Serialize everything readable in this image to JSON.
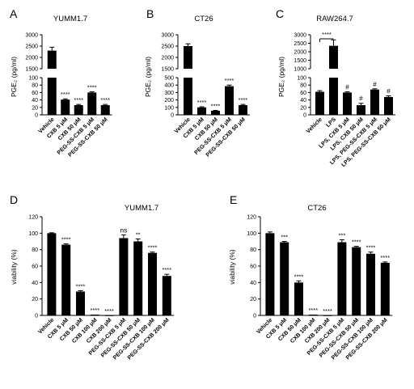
{
  "chart_data": [
    {
      "panel": "A",
      "type": "bar",
      "title": "YUMM1.7",
      "ylabel": "PGE₂ (pg/ml)",
      "categories": [
        "Vehicle",
        "CXB 5 μM",
        "CXB 50 μM",
        "PEG-SS-CXB 5 μM",
        "PEG-SS-CXB 50 μM"
      ],
      "values": [
        2300,
        41,
        26,
        60,
        26
      ],
      "errors": [
        150,
        2,
        2,
        2,
        2
      ],
      "significance": [
        "",
        "****",
        "****",
        "****",
        "****"
      ],
      "broken_axis": {
        "upper_ticks": [
          1500,
          2000,
          2500,
          3000
        ],
        "lower_ticks": [
          0,
          20,
          40,
          60,
          80,
          100
        ],
        "upper_ylim": [
          1500,
          3000
        ],
        "lower_ylim": [
          0,
          100
        ]
      }
    },
    {
      "panel": "B",
      "type": "bar",
      "title": "CT26",
      "ylabel": "PGE₂ (pg/ml)",
      "categories": [
        "Vehicle",
        "CXB 5 μM",
        "CXB 50 μM",
        "PEG-SS-CXB 5 μM",
        "PEG-SS-CXB 50 μM"
      ],
      "values": [
        2500,
        100,
        55,
        385,
        130
      ],
      "errors": [
        100,
        8,
        5,
        15,
        10
      ],
      "significance": [
        "",
        "****",
        "****",
        "****",
        "****"
      ],
      "broken_axis": {
        "upper_ticks": [
          1500,
          2000,
          2500,
          3000
        ],
        "lower_ticks": [
          0,
          100,
          200,
          300,
          400,
          500
        ],
        "upper_ylim": [
          1500,
          3000
        ],
        "lower_ylim": [
          0,
          500
        ]
      }
    },
    {
      "panel": "C",
      "type": "bar",
      "title": "RAW264.7",
      "ylabel": "PGE₂ (pg/ml)",
      "categories": [
        "Vehicle",
        "LPS",
        "LPS, CXB 5 μM",
        "LPS, CXB 50 μM",
        "LPS, PEG-SS-CXB 5 μM",
        "LPS, PEG-SS-CXB 50 μM"
      ],
      "values": [
        62,
        2350,
        60,
        26,
        68,
        48
      ],
      "errors": [
        3,
        350,
        2,
        5,
        2,
        3
      ],
      "significance": [
        "",
        "",
        "#",
        "#",
        "#",
        "#"
      ],
      "bracket_label": "****",
      "broken_axis": {
        "upper_ticks": [
          1000,
          1500,
          2000,
          2500,
          3000
        ],
        "lower_ticks": [
          0,
          20,
          40,
          60,
          80,
          100
        ],
        "upper_ylim": [
          1000,
          3000
        ],
        "lower_ylim": [
          0,
          100
        ]
      }
    },
    {
      "panel": "D",
      "type": "bar",
      "title": "YUMM1.7",
      "ylabel": "viability (%)",
      "categories": [
        "Vehicle",
        "CXB 5 μM",
        "CXB 50 μM",
        "CXB 100 μM",
        "CXB 200 μM",
        "PEG-SS-CXB 5 μM",
        "PEG-SS-CXB 50 μM",
        "PEG-SS-CXB 100 μM",
        "PEG-SS-CXB 200 μM"
      ],
      "values": [
        100,
        86,
        29,
        1,
        0,
        94,
        90,
        76,
        48
      ],
      "errors": [
        0.5,
        1,
        1,
        0.2,
        0.2,
        4,
        3,
        1,
        2
      ],
      "significance": [
        "",
        "****",
        "****",
        "****",
        "****",
        "ns",
        "**",
        "****",
        "****"
      ],
      "ylim": [
        0,
        120
      ],
      "yticks": [
        0,
        20,
        40,
        60,
        80,
        100,
        120
      ]
    },
    {
      "panel": "E",
      "type": "bar",
      "title": "CT26",
      "ylabel": "viability (%)",
      "categories": [
        "Vehicle",
        "CXB 5 μM",
        "CXB 50 μM",
        "CXB 100 μM",
        "CXB 200 μM",
        "PEG-SS-CXB 5 μM",
        "PEG-SS-CXB 50 μM",
        "PEG-SS-CXB 100 μM",
        "PEG-SS-CXB 200 μM"
      ],
      "values": [
        100,
        89,
        40,
        1,
        0,
        89,
        83,
        75,
        64
      ],
      "errors": [
        1.5,
        1,
        2,
        0.2,
        0.2,
        3,
        1,
        2,
        1
      ],
      "significance": [
        "",
        "***",
        "****",
        "****",
        "****",
        "***",
        "****",
        "****",
        "****"
      ],
      "ylim": [
        0,
        120
      ],
      "yticks": [
        0,
        20,
        40,
        60,
        80,
        100,
        120
      ]
    }
  ]
}
